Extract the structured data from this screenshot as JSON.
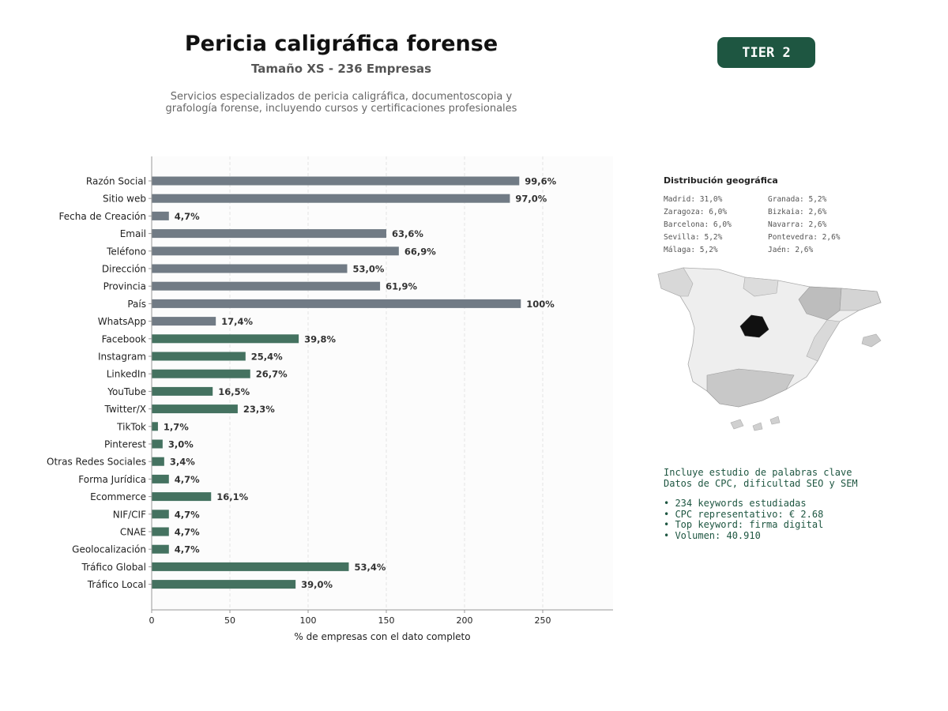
{
  "header": {
    "title": "Pericia caligráfica forense",
    "subtitle": "Tamaño XS - 236 Empresas",
    "description_line1": "Servicios especializados de pericia caligráfica, documentoscopia y",
    "description_line2": "grafología forense, incluyendo cursos y certificaciones profesionales",
    "tier": "TIER 2"
  },
  "colors": {
    "gray_bar": "#717b85",
    "green_bar": "#447260",
    "tier_bg": "#1e5641",
    "keyword_text": "#1e5641"
  },
  "chart_data": {
    "type": "bar",
    "orientation": "horizontal",
    "xlabel": "% de empresas con el dato completo",
    "xlim": [
      0,
      295
    ],
    "xticks": [
      0,
      50,
      100,
      150,
      200,
      250
    ],
    "grid": "vertical dashed",
    "categories": [
      "Razón Social",
      "Sitio web",
      "Fecha de Creación",
      "Email",
      "Teléfono",
      "Dirección",
      "Provincia",
      "País",
      "WhatsApp",
      "Facebook",
      "Instagram",
      "LinkedIn",
      "YouTube",
      "Twitter/X",
      "TikTok",
      "Pinterest",
      "Otras Redes Sociales",
      "Forma Jurídica",
      "Ecommerce",
      "NIF/CIF",
      "CNAE",
      "Geolocalización",
      "Tráfico Global",
      "Tráfico Local"
    ],
    "values": [
      235,
      229,
      11,
      150,
      158,
      125,
      146,
      236,
      41,
      94,
      60,
      63,
      39,
      55,
      4,
      7,
      8,
      11,
      38,
      11,
      11,
      11,
      126,
      92
    ],
    "labels": [
      "99,6%",
      "97,0%",
      "4,7%",
      "63,6%",
      "66,9%",
      "53,0%",
      "61,9%",
      "100%",
      "17,4%",
      "39,8%",
      "25,4%",
      "26,7%",
      "16,5%",
      "23,3%",
      "1,7%",
      "3,0%",
      "3,4%",
      "4,7%",
      "16,1%",
      "4,7%",
      "4,7%",
      "4,7%",
      "53,4%",
      "39,0%"
    ],
    "bar_colors": [
      "gray",
      "gray",
      "gray",
      "gray",
      "gray",
      "gray",
      "gray",
      "gray",
      "gray",
      "green",
      "green",
      "green",
      "green",
      "green",
      "green",
      "green",
      "green",
      "green",
      "green",
      "green",
      "green",
      "green",
      "green",
      "green"
    ]
  },
  "geo": {
    "title": "Distribución geográfica",
    "items": [
      "Madrid: 31,0%",
      "Granada: 5,2%",
      "Zaragoza: 6,0%",
      "Bizkaia: 2,6%",
      "Barcelona: 6,0%",
      "Navarra: 2,6%",
      "Sevilla: 5,2%",
      "Pontevedra: 2,6%",
      "Málaga: 5,2%",
      "Jaén: 2,6%"
    ]
  },
  "keywords": {
    "line1": "Incluye estudio de palabras clave",
    "line2": "Datos de CPC, dificultad SEO y SEM",
    "bullets": [
      "• 234 keywords estudiadas",
      "• CPC representativo: € 2.68",
      "• Top keyword: firma digital",
      "• Volumen: 40.910"
    ]
  }
}
